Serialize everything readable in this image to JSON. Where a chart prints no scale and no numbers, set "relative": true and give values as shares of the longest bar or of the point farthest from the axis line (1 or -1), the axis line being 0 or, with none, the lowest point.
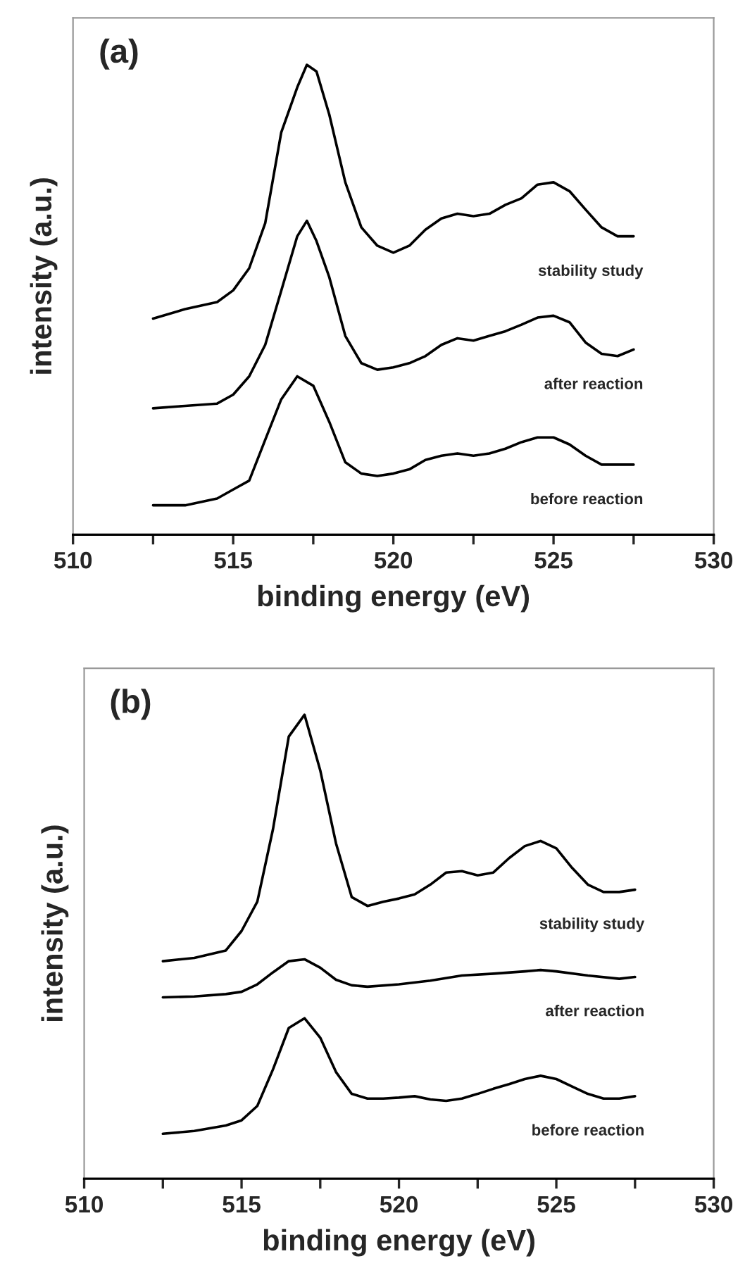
{
  "chart_data": [
    {
      "type": "line",
      "title": "(a)",
      "xlabel": "binding energy (eV)",
      "ylabel": "intensity (a.u.)",
      "relative": true,
      "xlim": [
        510,
        530
      ],
      "xticks": [
        510,
        {
          "value": 512.5,
          "label": null
        },
        515,
        {
          "value": 517.5,
          "label": null
        },
        520,
        {
          "value": 522.5,
          "label": null
        },
        525,
        {
          "value": 527.5,
          "label": null
        },
        530
      ],
      "legend": false,
      "grid": false,
      "series": [
        {
          "name": "stability study",
          "color": "#000000",
          "x": [
            512.5,
            513.5,
            514.5,
            515,
            515.5,
            516,
            516.5,
            517,
            517.3,
            517.6,
            518,
            518.5,
            519,
            519.5,
            520,
            520.5,
            521,
            521.5,
            522,
            522.5,
            523,
            523.5,
            524,
            524.5,
            525,
            525.5,
            526,
            526.5,
            527,
            527.5
          ],
          "values": [
            0.46,
            0.48,
            0.495,
            0.52,
            0.567,
            0.663,
            0.856,
            0.952,
            1.0,
            0.986,
            0.894,
            0.75,
            0.654,
            0.615,
            0.6,
            0.615,
            0.649,
            0.673,
            0.683,
            0.678,
            0.683,
            0.702,
            0.716,
            0.745,
            0.75,
            0.731,
            0.692,
            0.654,
            0.635,
            0.635
          ]
        },
        {
          "name": "after reaction",
          "color": "#000000",
          "x": [
            512.5,
            513.5,
            514.5,
            515,
            515.5,
            516,
            516.5,
            517,
            517.3,
            517.6,
            518,
            518.5,
            519,
            519.5,
            520,
            520.5,
            521,
            521.5,
            522,
            522.5,
            523,
            523.5,
            524,
            524.5,
            525,
            525.5,
            526,
            526.5,
            527,
            527.5
          ],
          "values": [
            0.269,
            0.274,
            0.279,
            0.298,
            0.337,
            0.404,
            0.519,
            0.635,
            0.668,
            0.625,
            0.548,
            0.423,
            0.365,
            0.351,
            0.356,
            0.365,
            0.38,
            0.404,
            0.418,
            0.413,
            0.423,
            0.433,
            0.447,
            0.462,
            0.466,
            0.452,
            0.409,
            0.385,
            0.38,
            0.394
          ]
        },
        {
          "name": "before reaction",
          "color": "#000000",
          "x": [
            512.5,
            513.5,
            514.5,
            515,
            515.5,
            516,
            516.5,
            517,
            517.5,
            518,
            518.5,
            519,
            519.5,
            520,
            520.5,
            521,
            521.5,
            522,
            522.5,
            523,
            523.5,
            524,
            524.5,
            525,
            525.5,
            526,
            526.5,
            527,
            527.5
          ],
          "values": [
            0.0625,
            0.0625,
            0.077,
            0.096,
            0.115,
            0.202,
            0.288,
            0.337,
            0.317,
            0.24,
            0.154,
            0.13,
            0.125,
            0.13,
            0.139,
            0.159,
            0.168,
            0.173,
            0.168,
            0.173,
            0.183,
            0.197,
            0.207,
            0.207,
            0.192,
            0.168,
            0.149,
            0.149,
            0.149
          ]
        }
      ]
    },
    {
      "type": "line",
      "title": "(b)",
      "xlabel": "binding energy (eV)",
      "ylabel": "intensity (a.u.)",
      "relative": true,
      "xlim": [
        510,
        530
      ],
      "xticks": [
        510,
        {
          "value": 512.5,
          "label": null
        },
        515,
        {
          "value": 517.5,
          "label": null
        },
        520,
        {
          "value": 522.5,
          "label": null
        },
        525,
        {
          "value": 527.5,
          "label": null
        },
        530
      ],
      "legend": false,
      "grid": false,
      "series": [
        {
          "name": "stability study",
          "color": "#000000",
          "x": [
            512.5,
            513.5,
            514.5,
            515,
            515.5,
            516,
            516.5,
            517,
            517.5,
            518,
            518.5,
            519,
            519.5,
            520,
            520.5,
            521,
            521.5,
            522,
            522.5,
            523,
            523.5,
            524,
            524.5,
            525,
            525.5,
            526,
            526.5,
            527,
            527.5
          ],
          "values": [
            0.469,
            0.476,
            0.492,
            0.534,
            0.597,
            0.754,
            0.953,
            1.0,
            0.88,
            0.723,
            0.607,
            0.588,
            0.597,
            0.604,
            0.613,
            0.634,
            0.66,
            0.663,
            0.654,
            0.66,
            0.691,
            0.717,
            0.728,
            0.712,
            0.67,
            0.634,
            0.618,
            0.618,
            0.623
          ]
        },
        {
          "name": "after reaction",
          "color": "#000000",
          "x": [
            512.5,
            513.5,
            514.5,
            515,
            515.5,
            516,
            516.5,
            517,
            517.5,
            518,
            518.5,
            519,
            520,
            521,
            522,
            523,
            524,
            524.5,
            525,
            526,
            527,
            527.5
          ],
          "values": [
            0.391,
            0.393,
            0.398,
            0.403,
            0.419,
            0.445,
            0.469,
            0.473,
            0.455,
            0.429,
            0.417,
            0.414,
            0.419,
            0.427,
            0.438,
            0.442,
            0.447,
            0.45,
            0.447,
            0.438,
            0.431,
            0.435
          ]
        },
        {
          "name": "before reaction",
          "color": "#000000",
          "x": [
            512.5,
            513.5,
            514.5,
            515,
            515.5,
            516,
            516.5,
            517,
            517.5,
            518,
            518.5,
            519,
            519.5,
            520,
            520.5,
            521,
            521.5,
            522,
            522.5,
            523,
            523.5,
            524,
            524.5,
            525,
            525.5,
            526,
            526.5,
            527,
            527.5
          ],
          "values": [
            0.097,
            0.103,
            0.115,
            0.126,
            0.157,
            0.236,
            0.325,
            0.346,
            0.304,
            0.23,
            0.183,
            0.173,
            0.173,
            0.175,
            0.178,
            0.171,
            0.168,
            0.173,
            0.183,
            0.194,
            0.204,
            0.215,
            0.222,
            0.215,
            0.199,
            0.183,
            0.173,
            0.173,
            0.178
          ]
        }
      ]
    }
  ]
}
